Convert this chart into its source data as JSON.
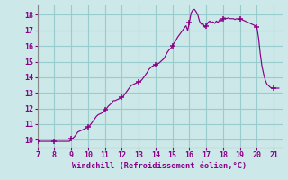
{
  "xlabel": "Windchill (Refroidissement éolien,°C)",
  "bg_color": "#cce8e8",
  "line_color": "#880088",
  "grid_color": "#99cccc",
  "xlim": [
    7,
    21.5
  ],
  "ylim": [
    9.5,
    18.6
  ],
  "xticks": [
    7,
    8,
    9,
    10,
    11,
    12,
    13,
    14,
    15,
    16,
    17,
    18,
    19,
    20,
    21
  ],
  "yticks": [
    10,
    11,
    12,
    13,
    14,
    15,
    16,
    17,
    18
  ],
  "x": [
    7.0,
    7.1,
    7.2,
    7.3,
    7.4,
    7.5,
    7.6,
    7.7,
    7.8,
    7.9,
    8.0,
    8.1,
    8.2,
    8.3,
    8.4,
    8.5,
    8.6,
    8.7,
    8.8,
    8.9,
    9.0,
    9.1,
    9.2,
    9.3,
    9.4,
    9.5,
    9.6,
    9.7,
    9.8,
    9.9,
    10.0,
    10.1,
    10.2,
    10.3,
    10.4,
    10.5,
    10.6,
    10.7,
    10.8,
    10.9,
    11.0,
    11.1,
    11.2,
    11.3,
    11.4,
    11.5,
    11.6,
    11.7,
    11.8,
    11.9,
    12.0,
    12.1,
    12.2,
    12.3,
    12.4,
    12.5,
    12.6,
    12.7,
    12.8,
    12.9,
    13.0,
    13.1,
    13.2,
    13.3,
    13.4,
    13.5,
    13.6,
    13.7,
    13.8,
    13.9,
    14.0,
    14.1,
    14.2,
    14.3,
    14.4,
    14.5,
    14.6,
    14.7,
    14.8,
    14.9,
    15.0,
    15.1,
    15.2,
    15.3,
    15.4,
    15.5,
    15.6,
    15.7,
    15.8,
    15.9,
    16.0,
    16.1,
    16.2,
    16.3,
    16.4,
    16.5,
    16.6,
    16.7,
    16.8,
    16.9,
    17.0,
    17.1,
    17.2,
    17.3,
    17.4,
    17.5,
    17.6,
    17.7,
    17.8,
    17.9,
    18.0,
    18.1,
    18.2,
    18.3,
    18.4,
    18.5,
    18.6,
    18.7,
    18.8,
    18.9,
    19.0,
    19.1,
    19.2,
    19.3,
    19.4,
    19.5,
    19.6,
    19.7,
    19.8,
    19.9,
    20.0,
    20.1,
    20.2,
    20.3,
    20.4,
    20.5,
    20.6,
    20.7,
    20.8,
    20.9,
    21.0,
    21.1,
    21.2,
    21.3
  ],
  "y": [
    9.9,
    9.9,
    9.9,
    9.9,
    9.9,
    9.9,
    9.9,
    9.9,
    9.9,
    9.9,
    9.9,
    9.9,
    9.9,
    9.9,
    9.9,
    9.9,
    9.9,
    9.9,
    9.9,
    9.9,
    10.05,
    10.1,
    10.2,
    10.35,
    10.5,
    10.55,
    10.6,
    10.65,
    10.7,
    10.75,
    10.8,
    10.9,
    11.05,
    11.2,
    11.35,
    11.5,
    11.6,
    11.65,
    11.7,
    11.75,
    11.9,
    12.0,
    12.15,
    12.25,
    12.35,
    12.5,
    12.5,
    12.55,
    12.6,
    12.65,
    12.7,
    12.8,
    12.95,
    13.1,
    13.25,
    13.4,
    13.5,
    13.55,
    13.6,
    13.65,
    13.7,
    13.75,
    13.85,
    14.0,
    14.15,
    14.3,
    14.5,
    14.6,
    14.7,
    14.75,
    14.8,
    14.85,
    14.9,
    15.0,
    15.1,
    15.2,
    15.4,
    15.6,
    15.75,
    15.85,
    16.0,
    16.2,
    16.35,
    16.55,
    16.7,
    16.85,
    17.0,
    17.15,
    17.3,
    17.0,
    17.5,
    18.1,
    18.3,
    18.35,
    18.2,
    18.0,
    17.6,
    17.4,
    17.45,
    17.2,
    17.3,
    17.5,
    17.6,
    17.5,
    17.55,
    17.45,
    17.6,
    17.5,
    17.7,
    17.6,
    17.75,
    17.8,
    17.75,
    17.8,
    17.75,
    17.75,
    17.75,
    17.7,
    17.75,
    17.7,
    17.75,
    17.7,
    17.65,
    17.6,
    17.55,
    17.5,
    17.45,
    17.4,
    17.35,
    17.3,
    17.2,
    16.5,
    15.5,
    14.7,
    14.2,
    13.8,
    13.55,
    13.45,
    13.35,
    13.3,
    13.3,
    13.3,
    13.3,
    13.3
  ],
  "marker_hours": [
    7,
    8,
    9,
    10,
    11,
    12,
    13,
    14,
    15,
    16,
    17,
    18,
    19,
    20,
    21
  ],
  "marker_values": [
    9.9,
    9.9,
    10.05,
    10.8,
    11.9,
    12.7,
    13.7,
    14.8,
    16.0,
    17.5,
    17.3,
    17.75,
    17.75,
    17.2,
    13.3
  ]
}
